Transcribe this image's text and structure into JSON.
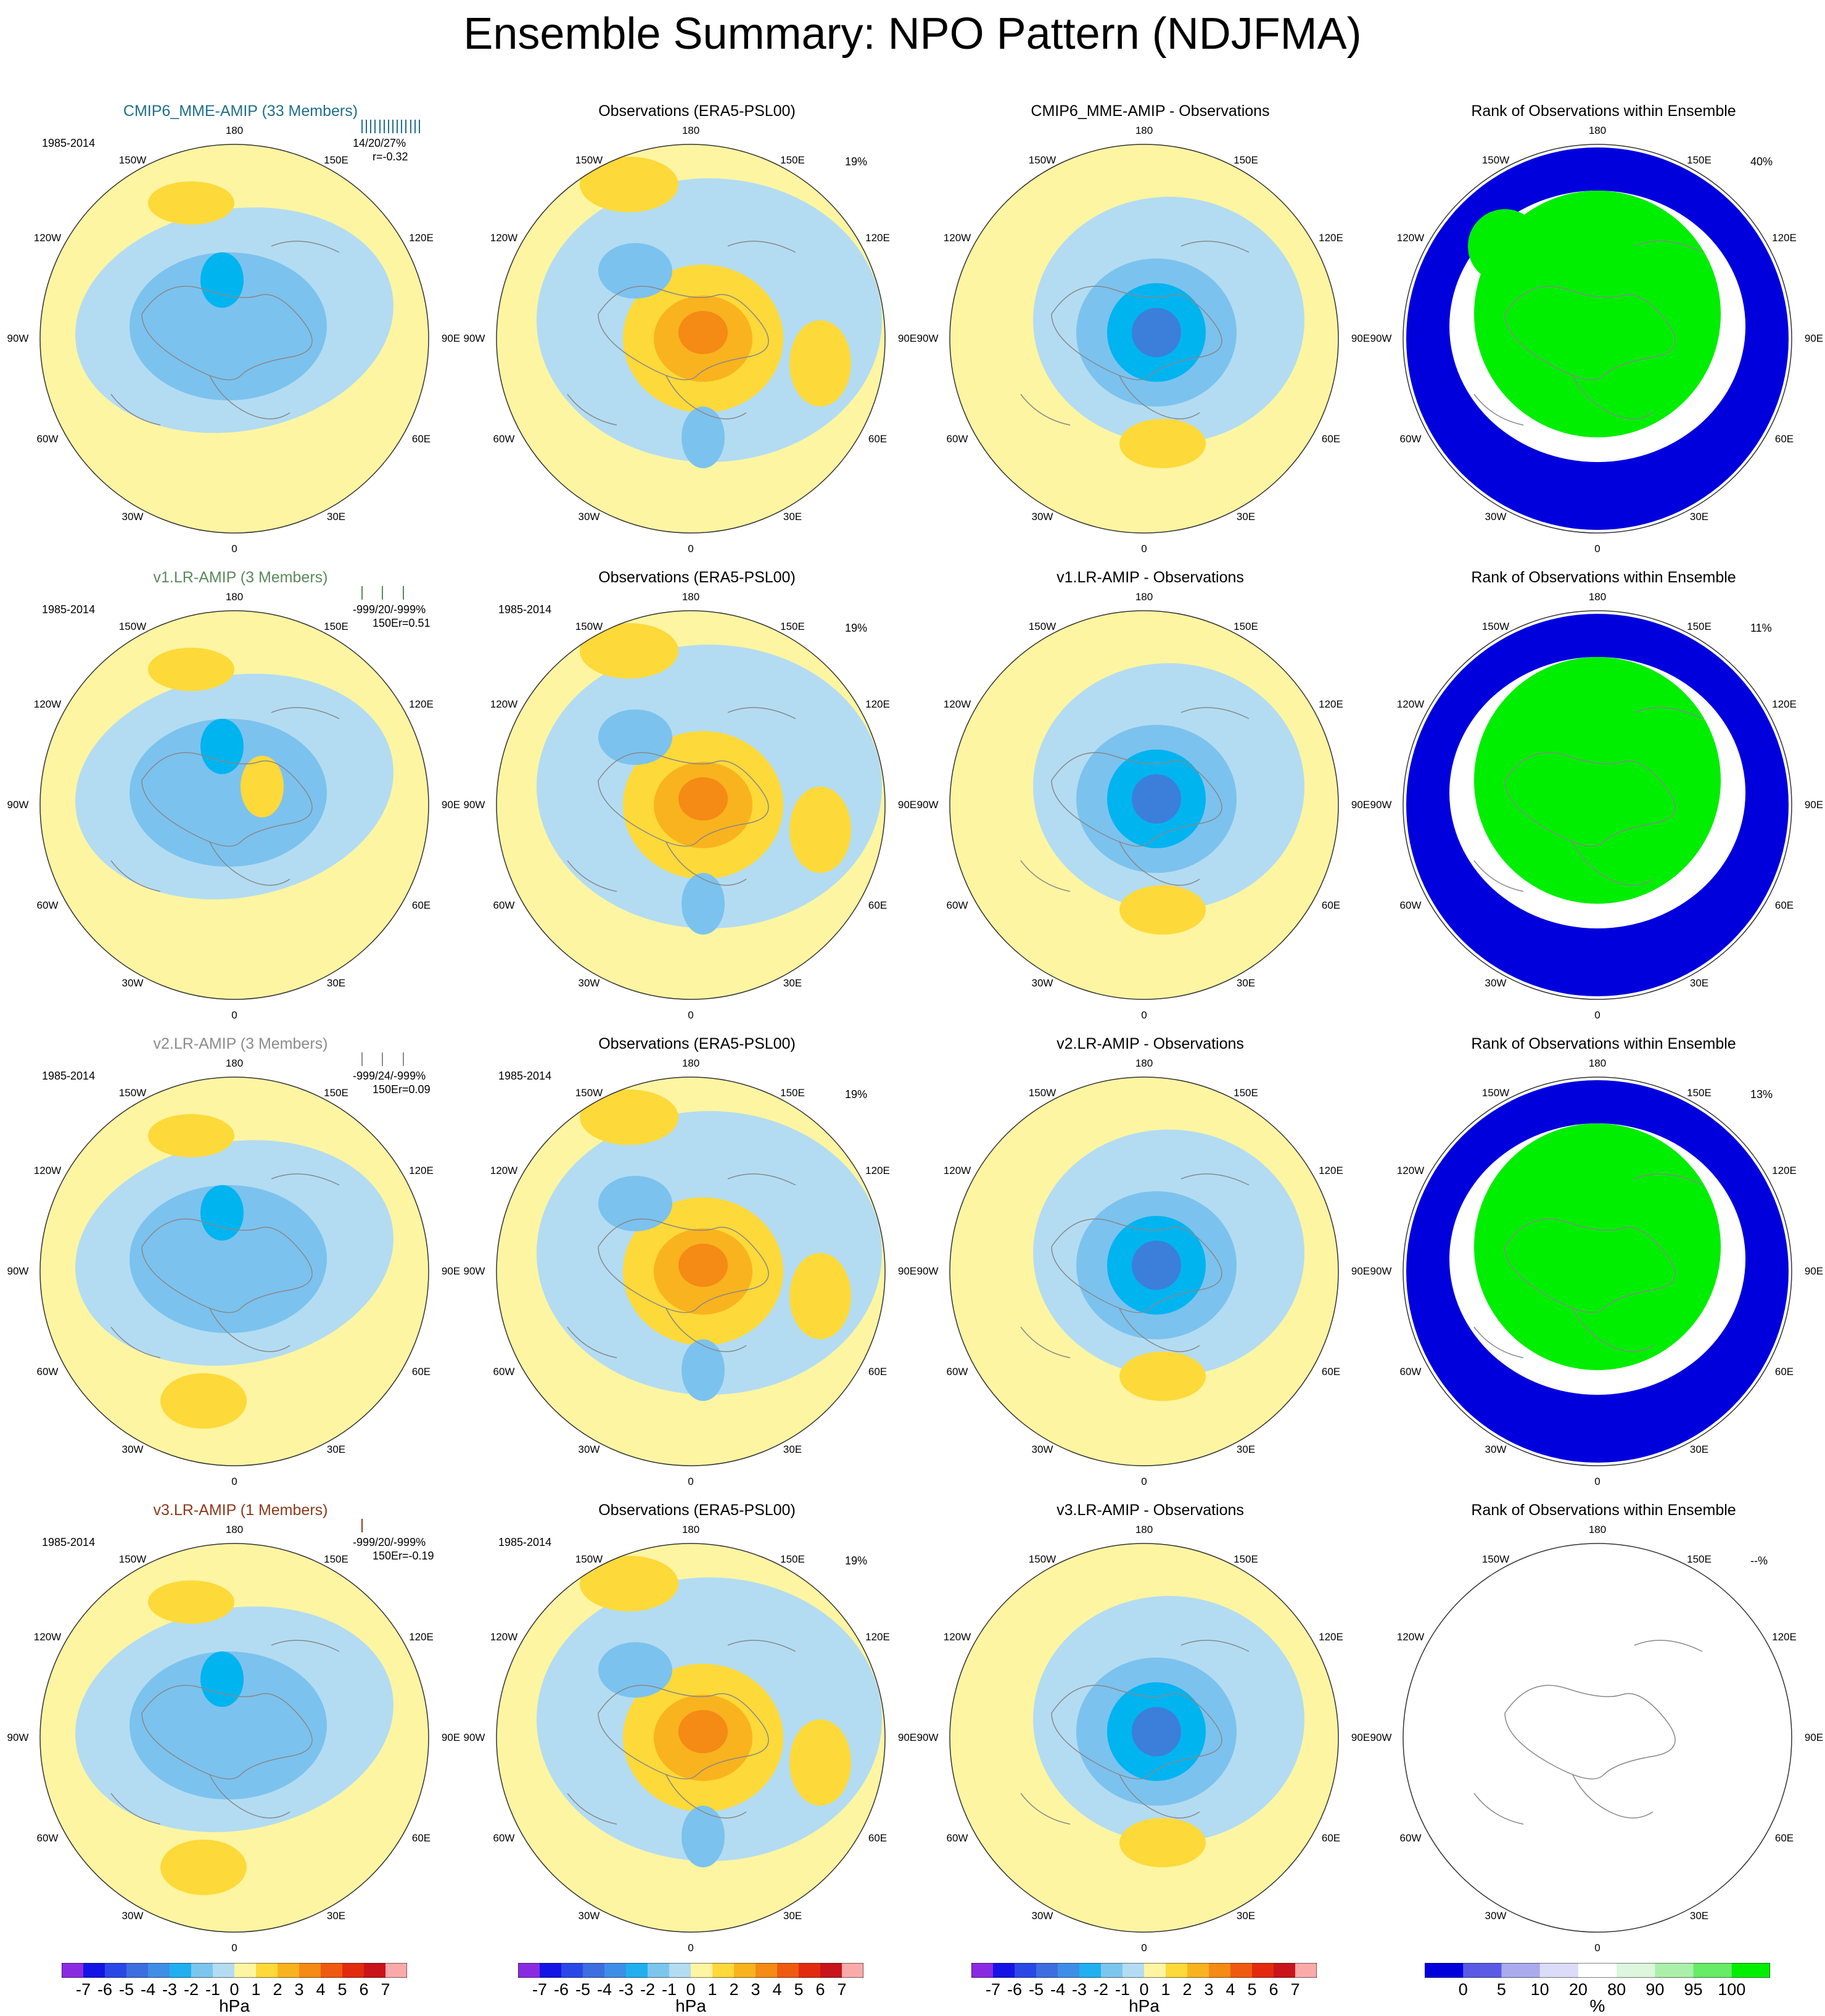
{
  "title": "Ensemble Summary: NPO Pattern (NDJFMA)",
  "lon_labels": {
    "top": "180",
    "bottom": "0",
    "l150": "150W",
    "r150": "150E",
    "l120": "120W",
    "r120": "120E",
    "l90": "90W",
    "r90": "90E",
    "l60": "60W",
    "r60": "60E",
    "l30": "30W",
    "r30": "30E"
  },
  "colors": {
    "title_rows": [
      "#1f6f8b",
      "#5a8a5a",
      "#8c8c8c",
      "#8b3a1a"
    ],
    "ocean_pos": "#fdf5a2",
    "neg1": "#b3dcf2",
    "neg2": "#7cc2ee",
    "neg3": "#5aa6e8",
    "neg4": "#00b4f0",
    "neg5": "#3b7fdb",
    "pos1": "#fdd93a",
    "pos2": "#f9b31e",
    "pos3": "#f58a15",
    "rank_low": "#0000dd",
    "rank_mid": "#ffffff",
    "rank_high": "#00ee00"
  },
  "rows": [
    {
      "model_title": "CMIP6_MME-AMIP (33 Members)",
      "period": "1985-2014",
      "stats": "14/20/27%",
      "corr": "r=-0.32",
      "obs_title": "Observations (ERA5-PSL00)",
      "obs_period": "",
      "obs_pct": "19%",
      "diff_title": "CMIP6_MME-AMIP - Observations",
      "rank_title": "Rank of Observations within Ensemble",
      "rank_pct": "40%"
    },
    {
      "model_title": "v1.LR-AMIP (3 Members)",
      "period": "1985-2014",
      "stats": "-999/20/-999%",
      "corr": "150Er=0.51",
      "obs_title": "Observations (ERA5-PSL00)",
      "obs_period": "1985-2014",
      "obs_pct": "19%",
      "diff_title": "v1.LR-AMIP - Observations",
      "rank_title": "Rank of Observations within Ensemble",
      "rank_pct": "11%"
    },
    {
      "model_title": "v2.LR-AMIP (3 Members)",
      "period": "1985-2014",
      "stats": "-999/24/-999%",
      "corr": "150Er=0.09",
      "obs_title": "Observations (ERA5-PSL00)",
      "obs_period": "1985-2014",
      "obs_pct": "19%",
      "diff_title": "v2.LR-AMIP - Observations",
      "rank_title": "Rank of Observations within Ensemble",
      "rank_pct": "13%"
    },
    {
      "model_title": "v3.LR-AMIP (1 Members)",
      "period": "1985-2014",
      "stats": "-999/20/-999%",
      "corr": "150Er=-0.19",
      "obs_title": "Observations (ERA5-PSL00)",
      "obs_period": "1985-2014",
      "obs_pct": "19%",
      "diff_title": "v3.LR-AMIP - Observations",
      "rank_title": "Rank of Observations within Ensemble",
      "rank_pct": "--%"
    }
  ],
  "chart_data": {
    "type": "heatmap",
    "projection": "north polar stereographic",
    "variable": "sea level pressure NPO pattern",
    "colorbar_hpa": {
      "unit": "hPa",
      "tick_labels": [
        "-7",
        "-6",
        "-5",
        "-4",
        "-3",
        "-2",
        "-1",
        "0",
        "1",
        "2",
        "3",
        "4",
        "5",
        "6",
        "7"
      ],
      "colors": [
        "#8a2be2",
        "#1414e6",
        "#2a48e8",
        "#3d6ee0",
        "#3e8ee8",
        "#20b0f0",
        "#7cc6ee",
        "#b3dcf2",
        "#fdf5a2",
        "#fdd93a",
        "#f9b31e",
        "#f58a15",
        "#ef5a10",
        "#e42a0e",
        "#c8141a",
        "#fbaaaa"
      ]
    },
    "colorbar_rank": {
      "unit": "%",
      "tick_labels": [
        "0",
        "5",
        "10",
        "20",
        "80",
        "90",
        "95",
        "100"
      ],
      "colors": [
        "#0000dd",
        "#5a5ae6",
        "#aaaaee",
        "#dcdcf8",
        "#ffffff",
        "#ddf6dd",
        "#aaf0aa",
        "#66ec66",
        "#00ee00"
      ]
    }
  }
}
